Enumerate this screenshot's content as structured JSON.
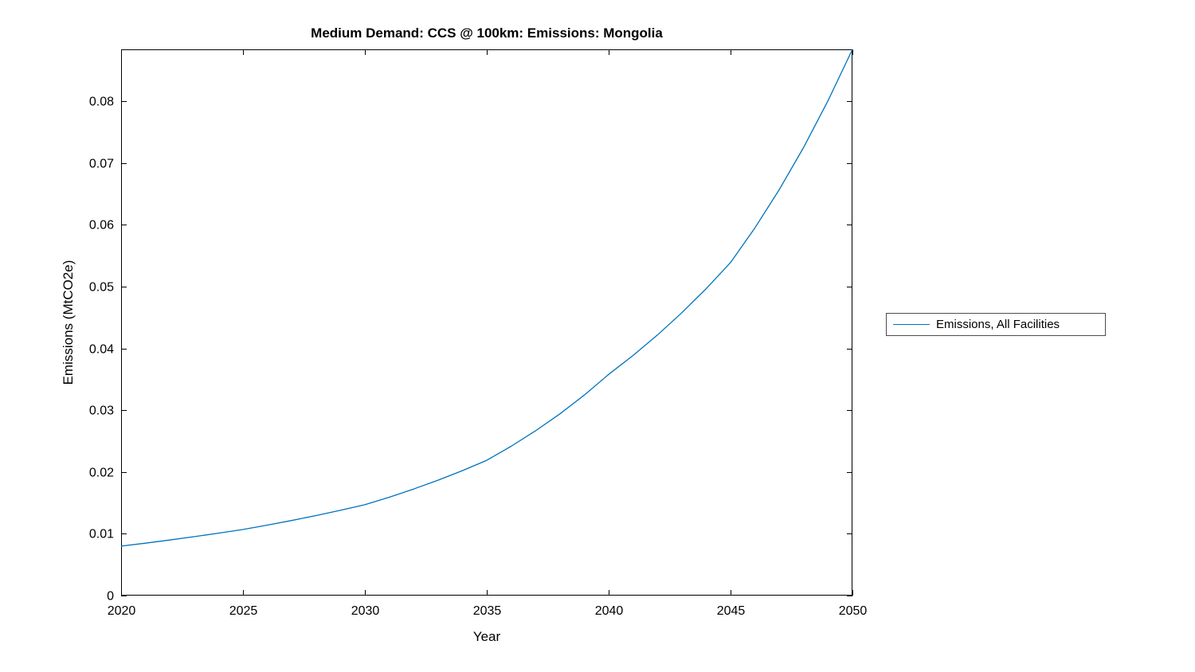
{
  "chart_data": {
    "type": "line",
    "title": "Medium Demand: CCS @ 100km: Emissions: Mongolia",
    "xlabel": "Year",
    "ylabel": "Emissions (MtCO2e)",
    "xlim": [
      2020,
      2050
    ],
    "ylim": [
      0,
      0.0884
    ],
    "x_ticks": [
      2020,
      2025,
      2030,
      2035,
      2040,
      2045,
      2050
    ],
    "y_ticks": [
      0,
      0.01,
      0.02,
      0.03,
      0.04,
      0.05,
      0.06,
      0.07,
      0.08
    ],
    "grid": false,
    "legend_position": "outside-right",
    "legend": [
      "Emissions, All Facilities"
    ],
    "line_color": "#0072BD",
    "x": [
      2020,
      2021,
      2022,
      2023,
      2024,
      2025,
      2026,
      2027,
      2028,
      2029,
      2030,
      2031,
      2032,
      2033,
      2034,
      2035,
      2036,
      2037,
      2038,
      2039,
      2040,
      2041,
      2042,
      2043,
      2044,
      2045,
      2046,
      2047,
      2048,
      2049,
      2050
    ],
    "series": [
      {
        "name": "Emissions, All Facilities",
        "values": [
          0.008,
          0.00848,
          0.00899,
          0.00953,
          0.0101,
          0.0107,
          0.0114,
          0.01215,
          0.01295,
          0.0138,
          0.0147,
          0.01592,
          0.01724,
          0.01867,
          0.02022,
          0.0219,
          0.02416,
          0.02666,
          0.02941,
          0.03245,
          0.0358,
          0.03885,
          0.04217,
          0.04577,
          0.04967,
          0.0539,
          0.05951,
          0.06571,
          0.07255,
          0.0801,
          0.0884
        ]
      }
    ]
  }
}
